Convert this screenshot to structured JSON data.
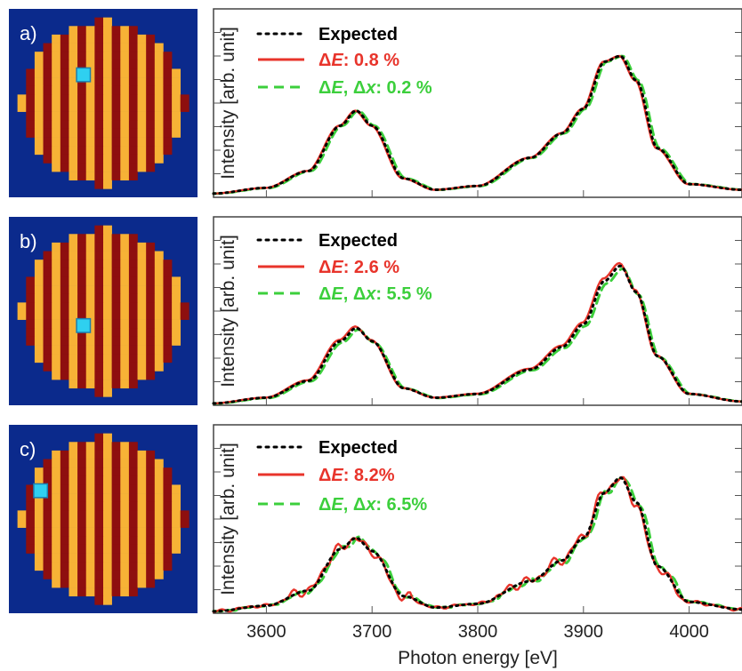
{
  "colors": {
    "expected": "#000000",
    "dE": "#e8342b",
    "dE_dx": "#3ccf3c",
    "map_background": "#0b2a8c",
    "map_grid": "#f7b236",
    "map_cell": "#8e0f0f",
    "marker": "#2fd0f0"
  },
  "panels": [
    {
      "letter": "a)",
      "marker_cell": [
        8,
        7
      ],
      "legend": {
        "expected": "Expected",
        "dE_delta": "Δ",
        "dE_sym": "E",
        "dE_value": ": 0.8 %",
        "dx_delta1": "Δ",
        "dx_sym1": "E",
        "dx_sep": ", ",
        "dx_delta2": "Δ",
        "dx_sym2": "x",
        "dx_value": ": 0.2 %"
      }
    },
    {
      "letter": "b)",
      "marker_cell": [
        8,
        12
      ],
      "legend": {
        "expected": "Expected",
        "dE_delta": "Δ",
        "dE_sym": "E",
        "dE_value": ": 2.6 %",
        "dx_delta1": "Δ",
        "dx_sym1": "E",
        "dx_sep": ", ",
        "dx_delta2": "Δ",
        "dx_sym2": "x",
        "dx_value": ": 5.5 %"
      }
    },
    {
      "letter": "c)",
      "marker_cell": [
        3,
        7
      ],
      "legend": {
        "expected": "Expected",
        "dE_delta": "Δ",
        "dE_sym": "E",
        "dE_value": ": 8.2%",
        "dx_delta1": "Δ",
        "dx_sym1": "E",
        "dx_sep": ", ",
        "dx_delta2": "Δ",
        "dx_sym2": "x",
        "dx_value": ": 6.5%"
      }
    }
  ],
  "chart_data": [
    {
      "type": "line",
      "panel": "a)",
      "xlabel": "",
      "ylabel": "Intensity [arb. unit]",
      "xlim": [
        3550,
        4050
      ],
      "ylim": [
        0,
        1
      ],
      "x_ticks": [
        3600,
        3700,
        3800,
        3900,
        4000
      ],
      "x_tick_labels_shown": false,
      "grid": false,
      "legend_position": "top-left",
      "noise": 0.0,
      "series": [
        {
          "name": "Expected",
          "style": "dotted",
          "color": "#000000",
          "x": [
            3550,
            3600,
            3640,
            3670,
            3685,
            3700,
            3730,
            3760,
            3800,
            3850,
            3880,
            3900,
            3920,
            3935,
            3950,
            3970,
            4000,
            4050
          ],
          "y": [
            0.02,
            0.05,
            0.14,
            0.38,
            0.46,
            0.38,
            0.1,
            0.04,
            0.06,
            0.21,
            0.34,
            0.47,
            0.72,
            0.75,
            0.62,
            0.26,
            0.07,
            0.04
          ]
        },
        {
          "name": "ΔE: 0.8 %",
          "style": "solid",
          "color": "#e8342b",
          "same_as": "Expected"
        },
        {
          "name": "ΔE, Δx: 0.2 %",
          "style": "dashed",
          "color": "#3ccf3c",
          "same_as": "Expected"
        }
      ]
    },
    {
      "type": "line",
      "panel": "b)",
      "xlabel": "",
      "ylabel": "Intensity [arb. unit]",
      "xlim": [
        3550,
        4050
      ],
      "ylim": [
        0,
        1
      ],
      "x_ticks": [
        3600,
        3700,
        3800,
        3900,
        4000
      ],
      "x_tick_labels_shown": false,
      "grid": false,
      "legend_position": "top-left",
      "noise": 0.0,
      "series": [
        {
          "name": "Expected",
          "style": "dotted",
          "color": "#000000",
          "x": [
            3550,
            3600,
            3640,
            3670,
            3685,
            3700,
            3730,
            3760,
            3800,
            3850,
            3880,
            3900,
            3920,
            3935,
            3950,
            3970,
            4000,
            4050
          ],
          "y": [
            0.01,
            0.04,
            0.13,
            0.34,
            0.41,
            0.34,
            0.09,
            0.04,
            0.06,
            0.19,
            0.31,
            0.43,
            0.66,
            0.74,
            0.6,
            0.26,
            0.06,
            0.02
          ]
        },
        {
          "name": "ΔE: 2.6 %",
          "style": "solid",
          "color": "#e8342b",
          "same_as": "Expected"
        },
        {
          "name": "ΔE, Δx: 5.5 %",
          "style": "dashed",
          "color": "#3ccf3c",
          "same_as": "Expected"
        }
      ]
    },
    {
      "type": "line",
      "panel": "c)",
      "xlabel": "Photon energy [eV]",
      "ylabel": "Intensity [arb. unit]",
      "xlim": [
        3550,
        4050
      ],
      "ylim": [
        0,
        1
      ],
      "x_ticks": [
        3600,
        3700,
        3800,
        3900,
        4000
      ],
      "x_tick_labels_shown": true,
      "grid": false,
      "legend_position": "top-left",
      "noise": 0.03,
      "series": [
        {
          "name": "Expected",
          "style": "dotted",
          "color": "#000000",
          "x": [
            3550,
            3600,
            3640,
            3670,
            3685,
            3700,
            3730,
            3760,
            3800,
            3850,
            3880,
            3900,
            3920,
            3935,
            3950,
            3970,
            4000,
            4050
          ],
          "y": [
            0.01,
            0.04,
            0.12,
            0.34,
            0.4,
            0.33,
            0.09,
            0.03,
            0.05,
            0.17,
            0.28,
            0.4,
            0.64,
            0.72,
            0.59,
            0.25,
            0.06,
            0.02
          ]
        },
        {
          "name": "ΔE: 8.2%",
          "style": "solid",
          "color": "#e8342b",
          "same_as": "Expected"
        },
        {
          "name": "ΔE, Δx: 6.5%",
          "style": "dashed",
          "color": "#3ccf3c",
          "same_as": "Expected"
        }
      ]
    }
  ]
}
